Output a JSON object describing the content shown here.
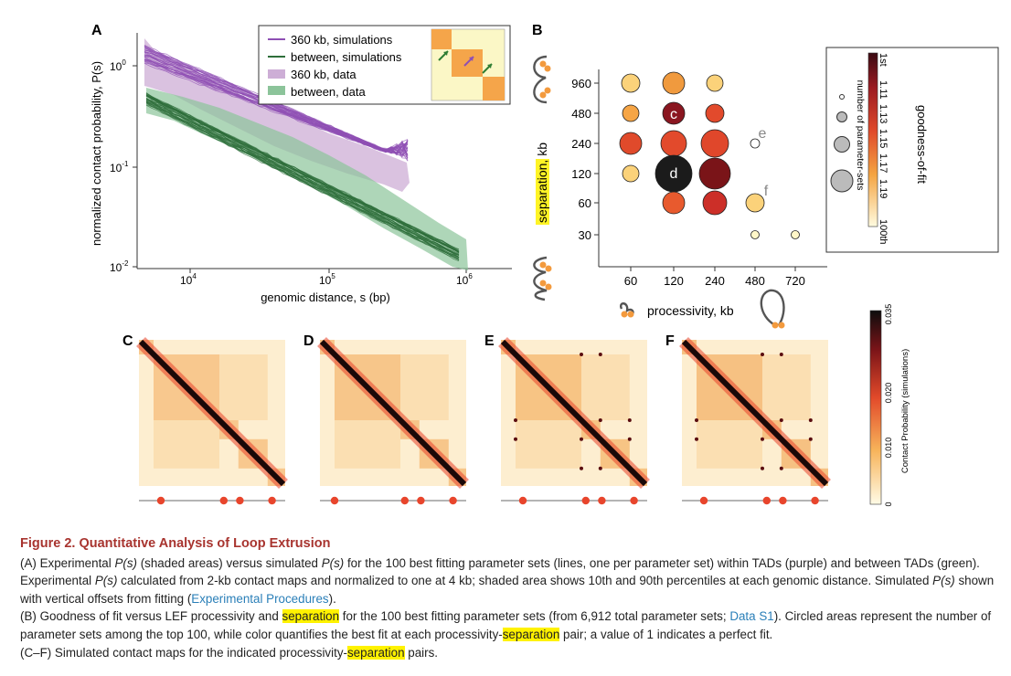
{
  "panels": {
    "A": {
      "label": "A",
      "ylabel": "normalized contact probability, P(s)",
      "xlabel": "genomic distance, s (bp)",
      "y_ticks": [
        "10",
        "10",
        "10"
      ],
      "y_exps": [
        "0",
        "-1",
        "-2"
      ],
      "x_ticks": [
        "10",
        "10",
        "10"
      ],
      "x_exps": [
        "4",
        "5",
        "6"
      ],
      "legend": [
        "360 kb, simulations",
        "between, simulations",
        "360 kb, data",
        "between, data"
      ]
    },
    "B": {
      "label": "B",
      "ylabel": "separation, kb",
      "xlabel": "processivity, kb",
      "y_ticks": [
        "960",
        "480",
        "240",
        "120",
        "60",
        "30"
      ],
      "x_ticks": [
        "60",
        "120",
        "240",
        "480",
        "720"
      ],
      "bubble_labels": [
        "c",
        "d",
        "e",
        "f"
      ],
      "colorbar": {
        "title": "goodness-of-fit",
        "subtitle": "number of parameter-sets",
        "ticks": [
          "1st",
          "1.11",
          "1.13",
          "1.15",
          "1.17",
          "1.19",
          "100th"
        ]
      }
    },
    "maps": {
      "labels": [
        "C",
        "D",
        "E",
        "F"
      ],
      "colorbar_label": "Contact Probability (simulations)",
      "colorbar_ticks": [
        "0",
        "0.010",
        "0.020",
        "0.035"
      ]
    }
  },
  "colors": {
    "purple": "#8e4fb4",
    "green": "#2e6e3a",
    "orange": "#f39a3d",
    "dot_red": "#e8452c"
  },
  "caption": {
    "title": "Figure 2.  Quantitative Analysis of Loop Extrusion",
    "a": {
      "p1": "(A) Experimental ",
      "ps1": "P(s)",
      "p2": " (shaded areas) versus simulated ",
      "ps2": "P(s)",
      "p3": " for the 100 best fitting parameter sets (lines, one per parameter set) within TADs (purple) and between TADs (green). Experimental ",
      "ps3": "P(s)",
      "p4": " calculated from 2-kb contact maps and normalized to one at 4 kb; shaded area shows 10th and 90th percentiles at each genomic distance. Simulated ",
      "ps4": "P(s)",
      "p5": " shown with vertical offsets from fitting (",
      "link": "Experimental Procedures",
      "p6": ")."
    },
    "b": {
      "p1": "(B) Goodness of fit versus LEF processivity and ",
      "hl1": "separation",
      "p2": " for the 100 best fitting parameter sets (from 6,912 total parameter sets; ",
      "link": "Data S1",
      "p3": "). Circled areas represent the number of parameter sets among the top 100, while color quantifies the best fit at each processivity-",
      "hl2": "separation",
      "p4": " pair; a value of 1 indicates a perfect fit."
    },
    "c": {
      "p1": "(C–F) Simulated contact maps for the indicated processivity-",
      "hl1": "separation",
      "p2": " pairs."
    }
  }
}
